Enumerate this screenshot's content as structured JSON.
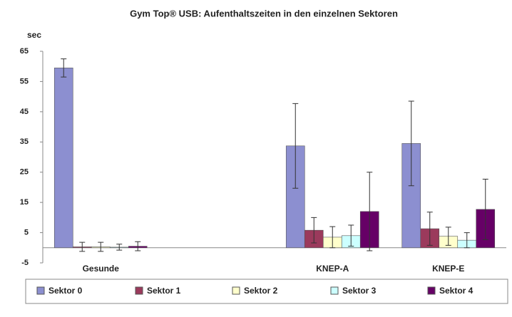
{
  "chart_data": {
    "type": "bar",
    "title": "Gym Top® USB: Aufenthaltszeiten in den einzelnen Sektoren",
    "y_label": "sec",
    "categories": [
      "Gesunde",
      null,
      "KNEP-A",
      "KNEP-E"
    ],
    "series": [
      {
        "name": "Sektor 0",
        "color": "#8c8fd0",
        "values": [
          59.5,
          null,
          33.7,
          34.5
        ],
        "errors": [
          3,
          null,
          14,
          14
        ]
      },
      {
        "name": "Sektor 1",
        "color": "#9b3a5c",
        "values": [
          0.3,
          null,
          5.8,
          6.3
        ],
        "errors": [
          1.5,
          null,
          4.2,
          5.5
        ]
      },
      {
        "name": "Sektor 2",
        "color": "#ffffcc",
        "values": [
          0.3,
          null,
          3.5,
          3.8
        ],
        "errors": [
          1.5,
          null,
          3.5,
          3
        ]
      },
      {
        "name": "Sektor 3",
        "color": "#ccffff",
        "values": [
          0.2,
          null,
          4,
          2.5
        ],
        "errors": [
          1,
          null,
          3.5,
          2.5
        ]
      },
      {
        "name": "Sektor 4",
        "color": "#660066",
        "values": [
          0.5,
          null,
          12,
          12.7
        ],
        "errors": [
          1.5,
          null,
          13,
          10
        ]
      }
    ],
    "ylim": [
      -5,
      65
    ],
    "yticks": [
      -5,
      5,
      15,
      25,
      35,
      45,
      55,
      65
    ],
    "grid": false,
    "legend": "bottom"
  }
}
